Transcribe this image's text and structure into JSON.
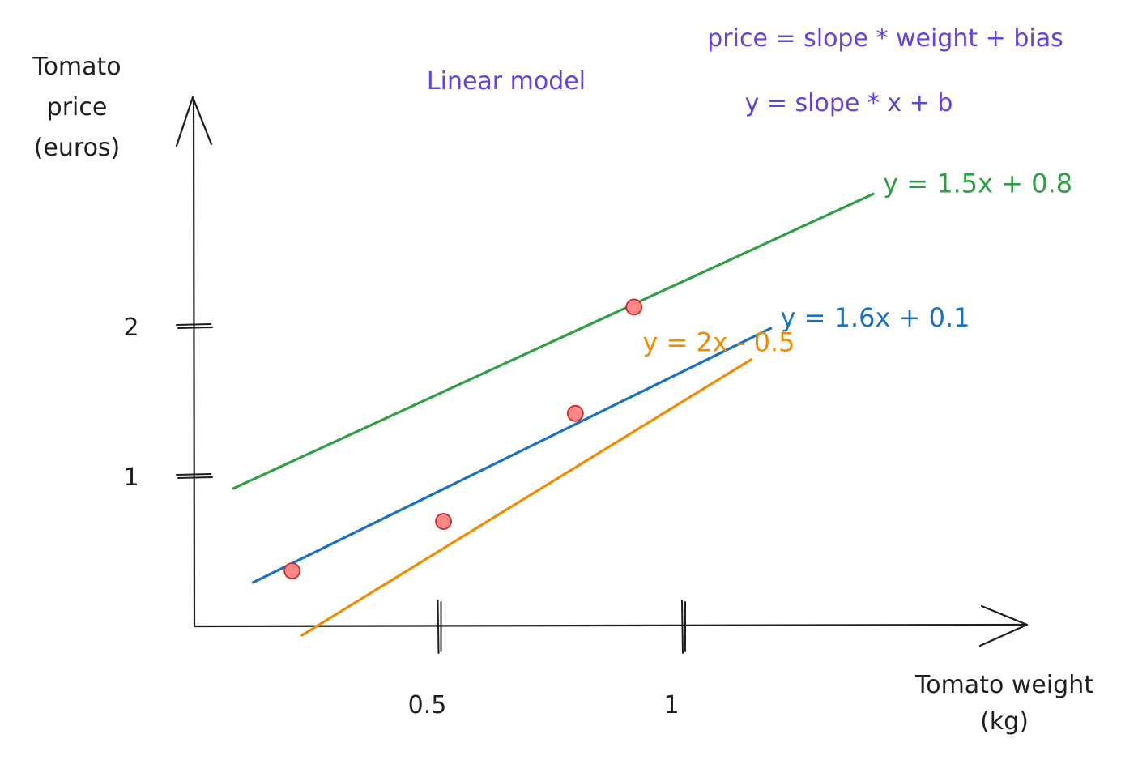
{
  "colors": {
    "axis": "#1e1e1e",
    "annotation": "#6741d9",
    "point_fill": "#ff8787",
    "point_stroke": "#c92a2a"
  },
  "annotations": {
    "model_title": "Linear model",
    "formula_words": "price = slope * weight + bias",
    "formula_symbols": "y = slope * x + b"
  },
  "chart_data": {
    "type": "scatter",
    "title": "",
    "xlabel_line1": "Tomato weight",
    "xlabel_line2": "(kg)",
    "ylabel_line1": "Tomato",
    "ylabel_line2": "price",
    "ylabel_line3": "(euros)",
    "xlim": [
      0,
      1.35
    ],
    "ylim": [
      0,
      2.5
    ],
    "xticks": [
      {
        "value": 0.5,
        "label": "0.5"
      },
      {
        "value": 1,
        "label": "1"
      }
    ],
    "yticks": [
      {
        "value": 1,
        "label": "1"
      },
      {
        "value": 2,
        "label": "2"
      }
    ],
    "grid": false,
    "points": [
      {
        "x": 0.2,
        "y": 0.37
      },
      {
        "x": 0.51,
        "y": 0.7
      },
      {
        "x": 0.78,
        "y": 1.42
      },
      {
        "x": 0.9,
        "y": 2.13
      }
    ],
    "lines": [
      {
        "label": "y = 1.5x + 0.8",
        "slope": 1.5,
        "intercept": 0.8,
        "x_range": [
          0.08,
          1.39
        ],
        "color": "#2f9e44",
        "label_position": "right-end"
      },
      {
        "label": "y = 1.6x + 0.1",
        "slope": 1.6,
        "intercept": 0.1,
        "x_range": [
          0.12,
          1.18
        ],
        "color": "#1971c2",
        "label_position": "right-end"
      },
      {
        "label": "y = 2x - 0.5",
        "slope": 2.0,
        "intercept": -0.5,
        "x_range": [
          0.22,
          1.14
        ],
        "color": "#f08c00",
        "label_position": "above-end"
      }
    ]
  }
}
